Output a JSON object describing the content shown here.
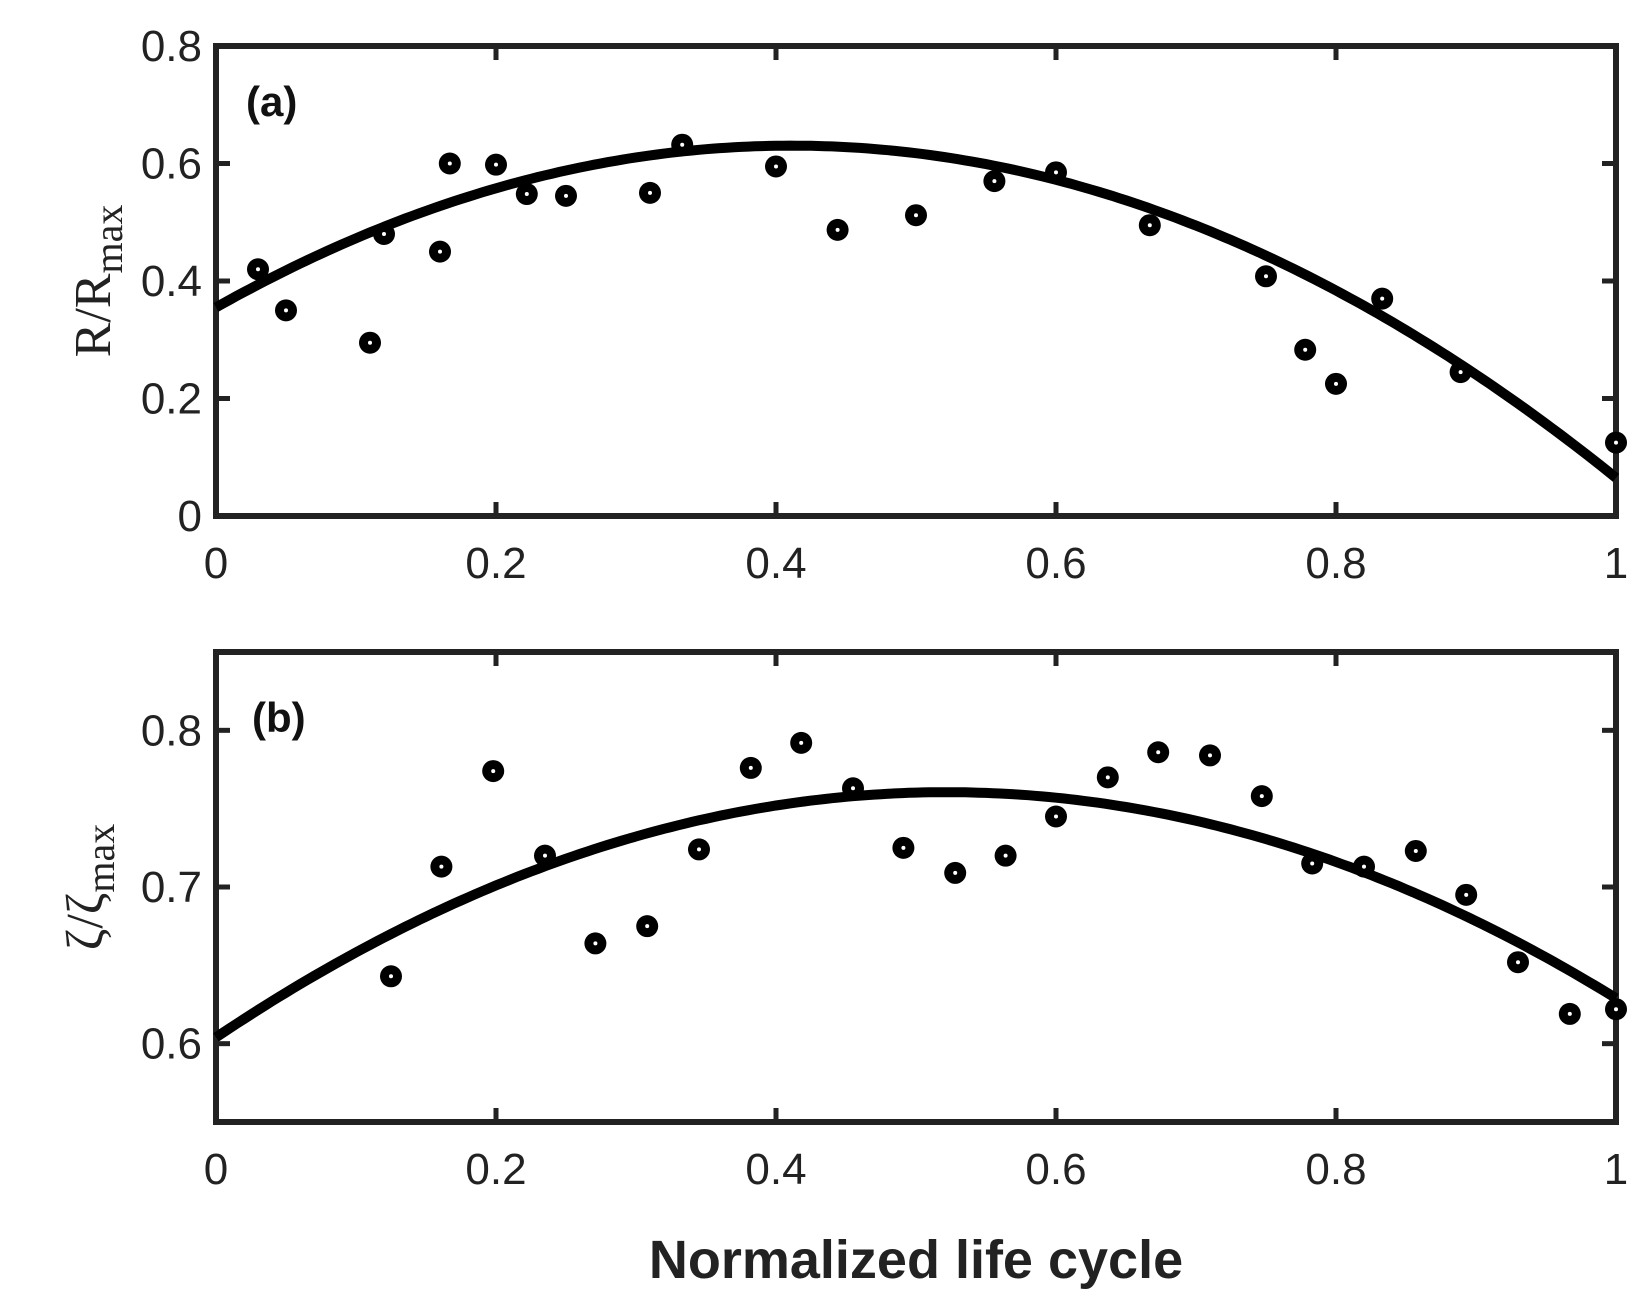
{
  "chart_data": [
    {
      "type": "scatter",
      "panel_label": "(a)",
      "xlabel": "",
      "ylabel": {
        "main": "R/R",
        "sub": "max"
      },
      "xlim": [
        0,
        1
      ],
      "ylim": [
        0,
        0.8
      ],
      "xticks": [
        "0",
        "0.2",
        "0.4",
        "0.6",
        "0.8",
        "1"
      ],
      "yticks": [
        "0",
        "0.2",
        "0.4",
        "0.6",
        "0.8"
      ],
      "grid": false,
      "points": {
        "x": [
          0.03,
          0.05,
          0.11,
          0.12,
          0.16,
          0.167,
          0.2,
          0.222,
          0.25,
          0.31,
          0.333,
          0.4,
          0.444,
          0.5,
          0.556,
          0.6,
          0.667,
          0.75,
          0.778,
          0.8,
          0.833,
          0.889,
          1.0
        ],
        "y": [
          0.42,
          0.35,
          0.295,
          0.48,
          0.45,
          0.6,
          0.598,
          0.548,
          0.545,
          0.55,
          0.632,
          0.595,
          0.487,
          0.512,
          0.57,
          0.585,
          0.495,
          0.408,
          0.283,
          0.225,
          0.37,
          0.245,
          0.125
        ]
      },
      "fit": {
        "name": "quadratic fit",
        "coefficients": [
          -1.63,
          1.34,
          0.355
        ]
      }
    },
    {
      "type": "scatter",
      "panel_label": "(b)",
      "xlabel": "Normalized life cycle",
      "ylabel": {
        "main": "ζ/ζ",
        "sub": "max"
      },
      "xlim": [
        0,
        1
      ],
      "ylim": [
        0.55,
        0.85
      ],
      "xticks": [
        "0",
        "0.2",
        "0.4",
        "0.6",
        "0.8",
        "1"
      ],
      "yticks": [
        "0.6",
        "0.7",
        "0.8"
      ],
      "yticks_values": [
        0.6,
        0.7,
        0.8
      ],
      "grid": false,
      "points": {
        "x": [
          0.125,
          0.161,
          0.198,
          0.235,
          0.271,
          0.308,
          0.345,
          0.382,
          0.418,
          0.455,
          0.491,
          0.528,
          0.564,
          0.6,
          0.637,
          0.673,
          0.71,
          0.747,
          0.783,
          0.82,
          0.857,
          0.893,
          0.93,
          0.967,
          1.0
        ],
        "y": [
          0.643,
          0.713,
          0.774,
          0.72,
          0.664,
          0.675,
          0.724,
          0.776,
          0.792,
          0.763,
          0.725,
          0.709,
          0.72,
          0.745,
          0.77,
          0.786,
          0.784,
          0.758,
          0.715,
          0.713,
          0.723,
          0.695,
          0.652,
          0.619,
          0.622
        ]
      },
      "fit": {
        "name": "quadratic fit",
        "coefficients": [
          -0.575,
          0.6,
          0.604
        ]
      }
    }
  ]
}
